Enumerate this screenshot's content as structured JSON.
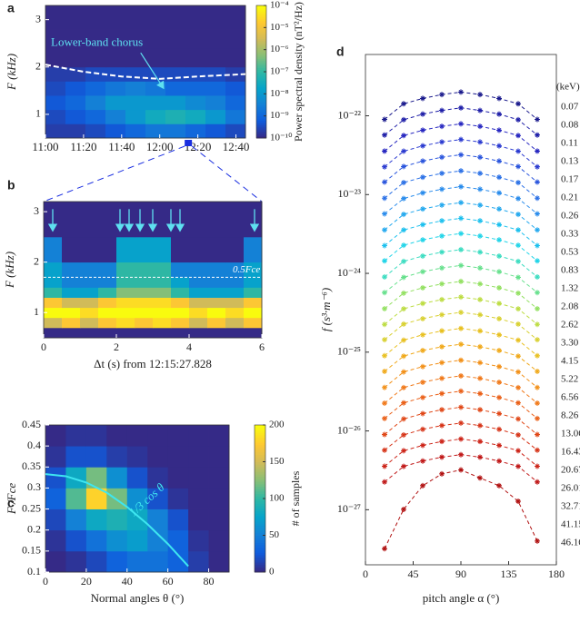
{
  "chart_data": [
    {
      "type": "heatmap",
      "panel_label": "a",
      "ylabel": "F (kHz)",
      "xlim": [
        0,
        105
      ],
      "ylim": [
        0.5,
        3.3
      ],
      "xticks": [
        {
          "value": 0,
          "label": "11:00"
        },
        {
          "value": 20,
          "label": "11:20"
        },
        {
          "value": 40,
          "label": "11:40"
        },
        {
          "value": 60,
          "label": "12:00"
        },
        {
          "value": 80,
          "label": "12:20"
        },
        {
          "value": 100,
          "label": "12:40"
        }
      ],
      "yticks": [
        1,
        2,
        3
      ],
      "x_edges": [
        0,
        10.5,
        21,
        31.5,
        42,
        52.5,
        63,
        73.5,
        84,
        94.5,
        105
      ],
      "y_edges": [
        0.5,
        0.8,
        1.1,
        1.4,
        1.7,
        2.0,
        2.4,
        2.8,
        3.3
      ],
      "z": [
        [
          2e-10,
          2e-10,
          3e-10,
          5e-10,
          1e-09,
          2e-09,
          2e-09,
          1e-09,
          5e-10,
          3e-10
        ],
        [
          3e-10,
          5e-10,
          1e-09,
          3e-09,
          1e-08,
          3e-08,
          5e-08,
          3e-08,
          1e-08,
          2e-09
        ],
        [
          5e-10,
          1e-09,
          3e-09,
          1e-08,
          1e-08,
          1e-08,
          1e-08,
          5e-09,
          3e-09,
          1e-09
        ],
        [
          3e-10,
          5e-10,
          1e-09,
          2e-09,
          3e-09,
          2e-09,
          1e-09,
          1e-09,
          1e-09,
          5e-10
        ],
        [
          2e-10,
          2e-10,
          3e-10,
          3e-10,
          3e-10,
          3e-10,
          3e-10,
          3e-10,
          3e-10,
          2e-10
        ],
        [
          1e-10,
          1e-10,
          1e-10,
          1e-10,
          1e-10,
          1e-10,
          1e-10,
          1e-10,
          1e-10,
          1e-10
        ],
        [
          1e-10,
          1e-10,
          1e-10,
          1e-10,
          1e-10,
          1e-10,
          1e-10,
          1e-10,
          1e-10,
          1e-10
        ],
        [
          1e-10,
          1e-10,
          1e-10,
          1e-10,
          1e-10,
          1e-10,
          1e-10,
          1e-10,
          1e-10,
          1e-10
        ]
      ],
      "color_scale": "log",
      "clim": [
        1e-10,
        0.0001
      ],
      "colorbar_label": "Power spectral density (nT²/Hz)",
      "cticks": [
        {
          "value": 0.0001,
          "label": "10⁻⁴"
        },
        {
          "value": 1e-05,
          "label": "10⁻⁵"
        },
        {
          "value": 1e-06,
          "label": "10⁻⁶"
        },
        {
          "value": 1e-07,
          "label": "10⁻⁷"
        },
        {
          "value": 1e-08,
          "label": "10⁻⁸"
        },
        {
          "value": 1e-09,
          "label": "10⁻⁹"
        },
        {
          "value": 1e-10,
          "label": "10⁻¹⁰"
        }
      ],
      "boundary_x": [
        0,
        20,
        40,
        60,
        80,
        105
      ],
      "boundary_y": [
        2.05,
        1.9,
        1.8,
        1.75,
        1.8,
        1.85
      ],
      "annotation": "Lower-band chorus",
      "highlight_x": 75
    },
    {
      "type": "heatmap",
      "panel_label": "b",
      "xlabel": "Δt (s) from 12:15:27.828",
      "ylabel": "F (kHz)",
      "xlim": [
        0,
        6
      ],
      "ylim": [
        0.5,
        3.2
      ],
      "xticks": [
        0,
        2,
        4,
        6
      ],
      "yticks": [
        1,
        2,
        3
      ],
      "x_edges": [
        0,
        0.5,
        1,
        1.5,
        2,
        2.5,
        3,
        3.5,
        4,
        4.5,
        5,
        5.5,
        6
      ],
      "y_edges": [
        0.5,
        0.7,
        0.9,
        1.1,
        1.3,
        1.5,
        1.7,
        2.0,
        2.5,
        3.2
      ],
      "z": [
        [
          1e-09,
          1e-09,
          1e-09,
          1e-09,
          1e-09,
          1e-09,
          1e-09,
          1e-09,
          1e-09,
          1e-09,
          1e-09,
          1e-09
        ],
        [
          1e-06,
          3e-06,
          1e-06,
          3e-06,
          5e-06,
          3e-06,
          5e-06,
          3e-06,
          1e-06,
          3e-06,
          1e-06,
          3e-06
        ],
        [
          1e-05,
          1e-05,
          5e-06,
          1e-05,
          2e-05,
          1e-05,
          2e-05,
          1e-05,
          5e-06,
          1e-05,
          5e-06,
          1e-05
        ],
        [
          3e-06,
          1e-06,
          1e-06,
          3e-06,
          5e-06,
          5e-06,
          5e-06,
          3e-06,
          1e-06,
          1e-06,
          1e-06,
          3e-06
        ],
        [
          1e-07,
          3e-08,
          3e-08,
          1e-07,
          3e-07,
          3e-07,
          3e-07,
          1e-07,
          3e-08,
          3e-08,
          3e-08,
          1e-07
        ],
        [
          3e-08,
          1e-08,
          1e-08,
          1e-08,
          1e-07,
          1e-07,
          1e-07,
          3e-08,
          1e-08,
          1e-08,
          1e-08,
          3e-08
        ],
        [
          3e-08,
          1e-08,
          1e-08,
          1e-08,
          1e-07,
          1e-07,
          1e-07,
          1e-08,
          1e-08,
          1e-08,
          1e-08,
          3e-08
        ],
        [
          1e-08,
          1e-09,
          1e-09,
          1e-09,
          3e-08,
          3e-08,
          3e-08,
          1e-09,
          1e-09,
          1e-09,
          1e-09,
          1e-08
        ],
        [
          1e-09,
          1e-09,
          1e-09,
          1e-09,
          1e-09,
          1e-09,
          1e-09,
          1e-09,
          1e-09,
          1e-09,
          1e-09,
          1e-09
        ]
      ],
      "color_scale": "log",
      "clim": [
        1e-09,
        1e-05
      ],
      "boundary_y": 1.7,
      "boundary_label": "0.5Fce",
      "arrows_x": [
        0.25,
        2.1,
        2.35,
        2.65,
        3.0,
        3.5,
        3.75,
        5.8
      ]
    },
    {
      "type": "heatmap",
      "panel_label": "c",
      "xlabel": "Normal angles θ (°)",
      "ylabel": "F /Fce",
      "xlim": [
        0,
        90
      ],
      "ylim": [
        0.1,
        0.45
      ],
      "xticks": [
        0,
        20,
        40,
        60,
        80
      ],
      "yticks": [
        0.1,
        0.15,
        0.2,
        0.25,
        0.3,
        0.35,
        0.4,
        0.45
      ],
      "x_edges": [
        0,
        10,
        20,
        30,
        40,
        50,
        60,
        70,
        80,
        90
      ],
      "y_edges": [
        0.1,
        0.15,
        0.2,
        0.25,
        0.3,
        0.35,
        0.4,
        0.45
      ],
      "z": [
        [
          0,
          5,
          15,
          30,
          40,
          40,
          30,
          10,
          0
        ],
        [
          5,
          20,
          40,
          60,
          70,
          50,
          30,
          5,
          0
        ],
        [
          15,
          50,
          80,
          90,
          80,
          50,
          20,
          0,
          0
        ],
        [
          30,
          110,
          180,
          120,
          60,
          20,
          5,
          0,
          0
        ],
        [
          20,
          80,
          120,
          60,
          20,
          5,
          0,
          0,
          0
        ],
        [
          5,
          20,
          20,
          10,
          5,
          0,
          0,
          0,
          0
        ],
        [
          0,
          5,
          5,
          0,
          0,
          0,
          0,
          0,
          0
        ]
      ],
      "color_scale": "linear",
      "clim": [
        0,
        200
      ],
      "colorbar_label": "# of samples",
      "cticks": [
        0,
        50,
        100,
        150,
        200
      ],
      "curve_x": [
        0,
        10,
        20,
        30,
        40,
        50,
        60,
        70
      ],
      "curve_y": [
        0.333,
        0.328,
        0.313,
        0.289,
        0.255,
        0.214,
        0.167,
        0.114
      ],
      "curve_label": "1/3 cos θ"
    },
    {
      "type": "line",
      "panel_label": "d",
      "xlabel": "pitch angle α (°)",
      "ylabel": "f (s³·m⁻⁶)",
      "legend_title": "(keV)",
      "log_y": true,
      "x": [
        18,
        36,
        54,
        72,
        90,
        108,
        126,
        144,
        162
      ],
      "xlim": [
        0,
        180
      ],
      "xticks": [
        0,
        45,
        90,
        135,
        180
      ],
      "ylim": [
        2e-28,
        6e-22
      ],
      "yticks": [
        {
          "value": 1e-22,
          "label": "10⁻²²"
        },
        {
          "value": 1e-23,
          "label": "10⁻²³"
        },
        {
          "value": 1e-24,
          "label": "10⁻²⁴"
        },
        {
          "value": 1e-25,
          "label": "10⁻²⁵"
        },
        {
          "value": 1e-26,
          "label": "10⁻²⁶"
        },
        {
          "value": 1e-27,
          "label": "10⁻²⁷"
        }
      ],
      "series": [
        {
          "name": "0.07",
          "color": "#1a1a8c",
          "values": [
            9e-23,
            1.42e-22,
            1.66e-22,
            1.86e-22,
            2e-22,
            1.86e-22,
            1.66e-22,
            1.42e-22,
            9e-23
          ]
        },
        {
          "name": "0.08",
          "color": "#1f1fa8",
          "values": [
            5.7e-23,
            8.9e-23,
            1.05e-22,
            1.17e-22,
            1.26e-22,
            1.17e-22,
            1.05e-22,
            8.9e-23,
            5.7e-23
          ]
        },
        {
          "name": "0.11",
          "color": "#2626c0",
          "values": [
            3.56e-23,
            5.61e-23,
            6.56e-23,
            7.35e-23,
            7.9e-23,
            7.35e-23,
            6.56e-23,
            5.61e-23,
            3.56e-23
          ]
        },
        {
          "name": "0.13",
          "color": "#2a3ad0",
          "values": [
            2.25e-23,
            3.55e-23,
            4.15e-23,
            4.65e-23,
            5e-23,
            4.65e-23,
            4.15e-23,
            3.55e-23,
            2.25e-23
          ]
        },
        {
          "name": "0.17",
          "color": "#2a55dd",
          "values": [
            1.44e-23,
            2.27e-23,
            2.66e-23,
            2.98e-23,
            3.2e-23,
            2.98e-23,
            2.66e-23,
            2.27e-23,
            1.44e-23
          ]
        },
        {
          "name": "0.21",
          "color": "#2a70e6",
          "values": [
            9e-24,
            1.42e-23,
            1.66e-23,
            1.86e-23,
            2e-23,
            1.86e-23,
            1.66e-23,
            1.42e-23,
            9e-24
          ]
        },
        {
          "name": "0.26",
          "color": "#2a8cec",
          "values": [
            5.7e-24,
            8.9e-24,
            1.05e-23,
            1.17e-23,
            1.26e-23,
            1.17e-23,
            1.05e-23,
            8.9e-24,
            5.7e-24
          ]
        },
        {
          "name": "0.33",
          "color": "#22a8ee",
          "values": [
            3.56e-24,
            5.61e-24,
            6.56e-24,
            7.35e-24,
            7.9e-24,
            7.35e-24,
            6.56e-24,
            5.61e-24,
            3.56e-24
          ]
        },
        {
          "name": "0.53",
          "color": "#1cc0ee",
          "values": [
            2.25e-24,
            3.55e-24,
            4.15e-24,
            4.65e-24,
            5e-24,
            4.65e-24,
            4.15e-24,
            3.55e-24,
            2.25e-24
          ]
        },
        {
          "name": "0.83",
          "color": "#20d4e8",
          "values": [
            1.44e-24,
            2.27e-24,
            2.66e-24,
            2.98e-24,
            3.2e-24,
            2.98e-24,
            2.66e-24,
            2.27e-24,
            1.44e-24
          ]
        },
        {
          "name": "1.32",
          "color": "#3adcc0",
          "values": [
            9e-25,
            1.42e-24,
            1.66e-24,
            1.86e-24,
            2e-24,
            1.86e-24,
            1.66e-24,
            1.42e-24,
            9e-25
          ]
        },
        {
          "name": "2.08",
          "color": "#66e08c",
          "values": [
            5.7e-25,
            8.9e-25,
            1.05e-24,
            1.17e-24,
            1.26e-24,
            1.17e-24,
            1.05e-24,
            8.9e-25,
            5.7e-25
          ]
        },
        {
          "name": "2.62",
          "color": "#92e060",
          "values": [
            3.56e-25,
            5.61e-25,
            6.56e-25,
            7.35e-25,
            7.9e-25,
            7.35e-25,
            6.56e-25,
            5.61e-25,
            3.56e-25
          ]
        },
        {
          "name": "3.30",
          "color": "#bcdc40",
          "values": [
            2.25e-25,
            3.55e-25,
            4.15e-25,
            4.65e-25,
            5e-25,
            4.65e-25,
            4.15e-25,
            3.55e-25,
            2.25e-25
          ]
        },
        {
          "name": "4.15",
          "color": "#d8d030",
          "values": [
            1.44e-25,
            2.27e-25,
            2.66e-25,
            2.98e-25,
            3.2e-25,
            2.98e-25,
            2.66e-25,
            2.27e-25,
            1.44e-25
          ]
        },
        {
          "name": "5.22",
          "color": "#e8c020",
          "values": [
            9e-26,
            1.42e-25,
            1.66e-25,
            1.86e-25,
            2e-25,
            1.86e-25,
            1.66e-25,
            1.42e-25,
            9e-26
          ]
        },
        {
          "name": "6.56",
          "color": "#f0a818",
          "values": [
            5.7e-26,
            8.9e-26,
            1.05e-25,
            1.17e-25,
            1.26e-25,
            1.17e-25,
            1.05e-25,
            8.9e-26,
            5.7e-26
          ]
        },
        {
          "name": "8.26",
          "color": "#f29018",
          "values": [
            3.56e-26,
            5.61e-26,
            6.56e-26,
            7.35e-26,
            7.9e-26,
            7.35e-26,
            6.56e-26,
            5.61e-26,
            3.56e-26
          ]
        },
        {
          "name": "13.06",
          "color": "#f07818",
          "values": [
            2.25e-26,
            3.55e-26,
            4.15e-26,
            4.65e-26,
            5e-26,
            4.65e-26,
            4.15e-26,
            3.55e-26,
            2.25e-26
          ]
        },
        {
          "name": "16.43",
          "color": "#ea6018",
          "values": [
            1.44e-26,
            2.27e-26,
            2.66e-26,
            2.98e-26,
            3.2e-26,
            2.98e-26,
            2.66e-26,
            2.27e-26,
            1.44e-26
          ]
        },
        {
          "name": "20.67",
          "color": "#e04818",
          "values": [
            9e-27,
            1.42e-26,
            1.66e-26,
            1.86e-26,
            2e-26,
            1.86e-26,
            1.66e-26,
            1.42e-26,
            9e-27
          ]
        },
        {
          "name": "26.01",
          "color": "#d63418",
          "values": [
            5.7e-27,
            8.9e-27,
            1.05e-26,
            1.17e-26,
            1.26e-26,
            1.17e-26,
            1.05e-26,
            8.9e-27,
            5.7e-27
          ]
        },
        {
          "name": "32.71",
          "color": "#cc2418",
          "values": [
            3.56e-27,
            5.61e-27,
            6.56e-27,
            7.35e-27,
            7.9e-27,
            7.35e-27,
            6.56e-27,
            5.61e-27,
            3.56e-27
          ]
        },
        {
          "name": "41.15",
          "color": "#c01818",
          "values": [
            2.25e-27,
            3.55e-27,
            4.15e-27,
            4.65e-27,
            5e-27,
            4.65e-27,
            4.15e-27,
            3.55e-27,
            2.25e-27
          ]
        },
        {
          "name": "46.16",
          "color": "#b01010",
          "values": [
            3.2e-28,
            1.01e-27,
            2.02e-27,
            2.85e-27,
            3.2e-27,
            2.53e-27,
            2.02e-27,
            1.28e-27,
            4e-28
          ]
        }
      ]
    }
  ]
}
